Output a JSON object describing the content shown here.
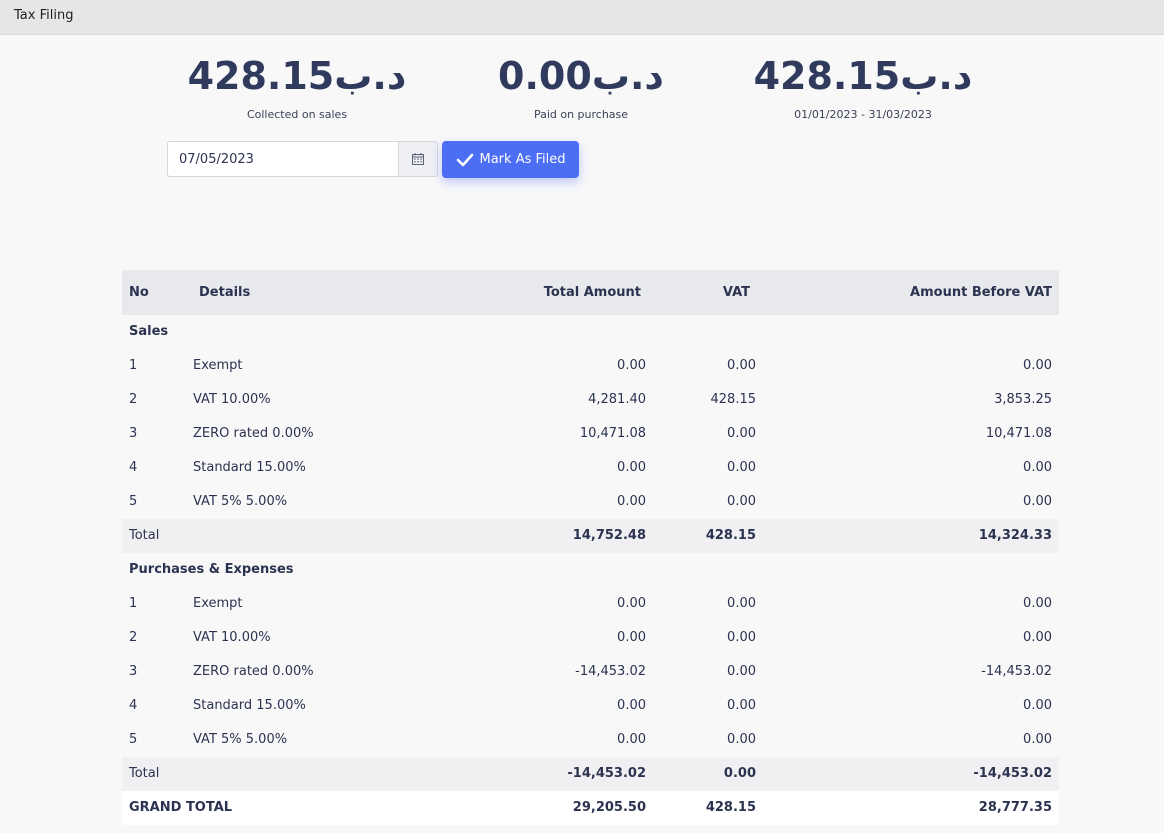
{
  "window": {
    "title": "Tax Filing"
  },
  "summary": {
    "collected": {
      "amount": "د.ب428.15",
      "caption": "Collected on sales"
    },
    "paid": {
      "amount": "د.ب0.00",
      "caption": "Paid on purchase"
    },
    "net": {
      "amount": "د.ب428.15",
      "caption": "01/01/2023 - 31/03/2023"
    }
  },
  "filing": {
    "date_value": "07/05/2023",
    "calendar_icon": "calendar-icon",
    "mark_label": "Mark As Filed",
    "mark_icon": "check-icon",
    "accent": "#4c6ef5"
  },
  "table": {
    "headers": {
      "no": "No",
      "details": "Details",
      "total": "Total Amount",
      "vat": "VAT",
      "before": "Amount Before VAT"
    },
    "sales": {
      "title": "Sales",
      "rows": [
        {
          "no": "1",
          "details": "Exempt",
          "total": "0.00",
          "vat": "0.00",
          "before": "0.00"
        },
        {
          "no": "2",
          "details": "VAT 10.00%",
          "total": "4,281.40",
          "vat": "428.15",
          "before": "3,853.25"
        },
        {
          "no": "3",
          "details": "ZERO rated 0.00%",
          "total": "10,471.08",
          "vat": "0.00",
          "before": "10,471.08"
        },
        {
          "no": "4",
          "details": "Standard 15.00%",
          "total": "0.00",
          "vat": "0.00",
          "before": "0.00"
        },
        {
          "no": "5",
          "details": "VAT 5% 5.00%",
          "total": "0.00",
          "vat": "0.00",
          "before": "0.00"
        }
      ],
      "total": {
        "label": "Total",
        "total": "14,752.48",
        "vat": "428.15",
        "before": "14,324.33"
      }
    },
    "purchases": {
      "title": "Purchases & Expenses",
      "rows": [
        {
          "no": "1",
          "details": "Exempt",
          "total": "0.00",
          "vat": "0.00",
          "before": "0.00"
        },
        {
          "no": "2",
          "details": "VAT 10.00%",
          "total": "0.00",
          "vat": "0.00",
          "before": "0.00"
        },
        {
          "no": "3",
          "details": "ZERO rated 0.00%",
          "total": "-14,453.02",
          "vat": "0.00",
          "before": "-14,453.02"
        },
        {
          "no": "4",
          "details": "Standard 15.00%",
          "total": "0.00",
          "vat": "0.00",
          "before": "0.00"
        },
        {
          "no": "5",
          "details": "VAT 5% 5.00%",
          "total": "0.00",
          "vat": "0.00",
          "before": "0.00"
        }
      ],
      "total": {
        "label": "Total",
        "total": "-14,453.02",
        "vat": "0.00",
        "before": "-14,453.02"
      }
    },
    "grand_total": {
      "label": "GRAND TOTAL",
      "total": "29,205.50",
      "vat": "428.15",
      "before": "28,777.35"
    }
  }
}
